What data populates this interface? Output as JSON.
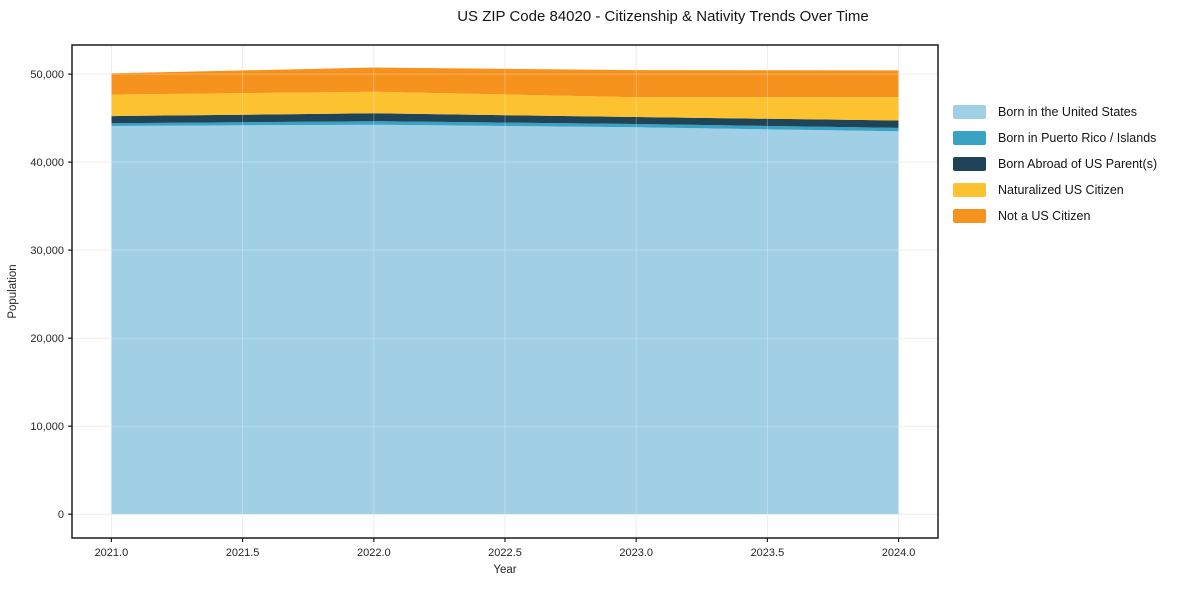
{
  "window": {
    "title": "US ZIP Code 84020 - Citizenship & Nativity Trends Over Time"
  },
  "chart_data": {
    "type": "area",
    "stacked": true,
    "title": "US ZIP Code 84020 - Citizenship & Nativity Trends Over Time",
    "xlabel": "Year",
    "ylabel": "Population",
    "x": [
      2021,
      2022,
      2023,
      2024
    ],
    "series": [
      {
        "name": "Born in the United States",
        "color": "#a0cfe6",
        "values": [
          44100,
          44250,
          43950,
          43500
        ]
      },
      {
        "name": "Born in Puerto Rico / Islands",
        "color": "#3aa2c3",
        "values": [
          320,
          390,
          380,
          380
        ]
      },
      {
        "name": "Born Abroad of US Parent(s)",
        "color": "#1f4457",
        "values": [
          800,
          900,
          790,
          840
        ]
      },
      {
        "name": "Naturalized US Citizen",
        "color": "#fcc22f",
        "values": [
          2450,
          2450,
          2250,
          2650
        ]
      },
      {
        "name": "Not a US Citizen",
        "color": "#f6921e",
        "values": [
          2400,
          2750,
          3080,
          3050
        ]
      }
    ],
    "stack_totals": [
      50070,
      50740,
      50450,
      50420
    ],
    "xlim": [
      2020.85,
      2024.15
    ],
    "ylim": [
      -2700,
      53300
    ],
    "xticks": {
      "values": [
        2021.0,
        2021.5,
        2022.0,
        2022.5,
        2023.0,
        2023.5,
        2024.0
      ],
      "labels": [
        "2021.0",
        "2021.5",
        "2022.0",
        "2022.5",
        "2023.0",
        "2023.5",
        "2024.0"
      ]
    },
    "yticks": {
      "values": [
        0,
        10000,
        20000,
        30000,
        40000,
        50000
      ],
      "labels": [
        "0",
        "10,000",
        "20,000",
        "30,000",
        "40,000",
        "50,000"
      ]
    },
    "grid": true,
    "grid_color": "#e7e7e7",
    "frame_color": "#1c1c1c",
    "legend_position": "right"
  }
}
